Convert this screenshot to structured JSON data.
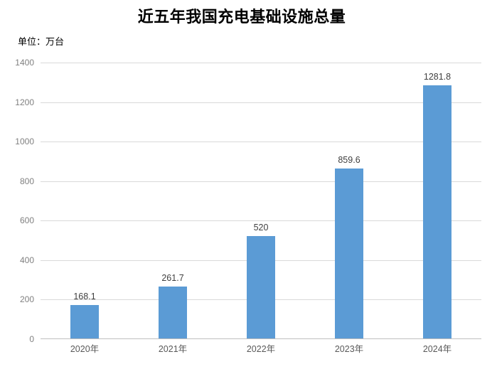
{
  "page": {
    "title": "近五年我国充电基础设施总量",
    "unit_label": "单位：万台"
  },
  "chart_data": {
    "type": "bar",
    "title": "近五年我国充电基础设施总量",
    "unit": "单位：万台",
    "categories": [
      "2020年",
      "2021年",
      "2022年",
      "2023年",
      "2024年"
    ],
    "values": [
      168.1,
      261.7,
      520,
      859.6,
      1281.8
    ],
    "value_labels": [
      "168.1",
      "261.7",
      "520",
      "859.6",
      "1281.8"
    ],
    "ylim": [
      0,
      1400
    ],
    "ytick_step": 200,
    "yticks": [
      "0",
      "200",
      "400",
      "600",
      "800",
      "1000",
      "1200",
      "1400"
    ],
    "grid": true,
    "legend": "none",
    "colors": {
      "bar": "#5B9BD5",
      "gridline": "#d9d9d9",
      "axis_line": "#bfbfbf",
      "ytick_text": "#808080",
      "xtick_text": "#595959",
      "value_label_text": "#404040",
      "title_text": "#000000",
      "background": "#ffffff"
    }
  }
}
